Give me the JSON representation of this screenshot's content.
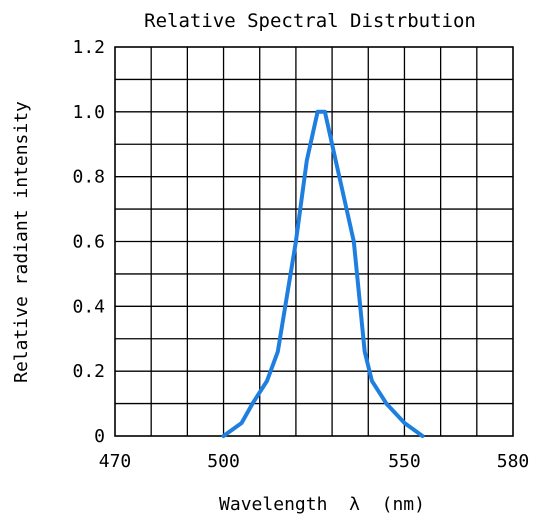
{
  "chart_data": {
    "type": "line",
    "title": "Relative Spectral Distrbution",
    "xlabel": "Wavelength  λ  (nm)",
    "ylabel": "Relative radiant intensity",
    "xlim": [
      470,
      580
    ],
    "ylim": [
      0,
      1.2
    ],
    "x_ticks": [
      470,
      500,
      550,
      580
    ],
    "x_tick_labels": [
      "470",
      "500",
      "550",
      "580"
    ],
    "y_ticks": [
      0,
      0.2,
      0.4,
      0.6,
      0.8,
      1.0,
      1.2
    ],
    "y_tick_labels": [
      "0",
      "0.2",
      "0.4",
      "0.6",
      "0.8",
      "1.0",
      "1.2"
    ],
    "grid": true,
    "series": [
      {
        "color": "#1f7fe0",
        "x": [
          500,
          505,
          508,
          512,
          515,
          520,
          523,
          526,
          528,
          531,
          536,
          539,
          541,
          545,
          550,
          555
        ],
        "y": [
          0.0,
          0.04,
          0.1,
          0.17,
          0.26,
          0.6,
          0.85,
          1.0,
          1.0,
          0.85,
          0.6,
          0.26,
          0.17,
          0.1,
          0.04,
          0.0
        ]
      }
    ]
  }
}
